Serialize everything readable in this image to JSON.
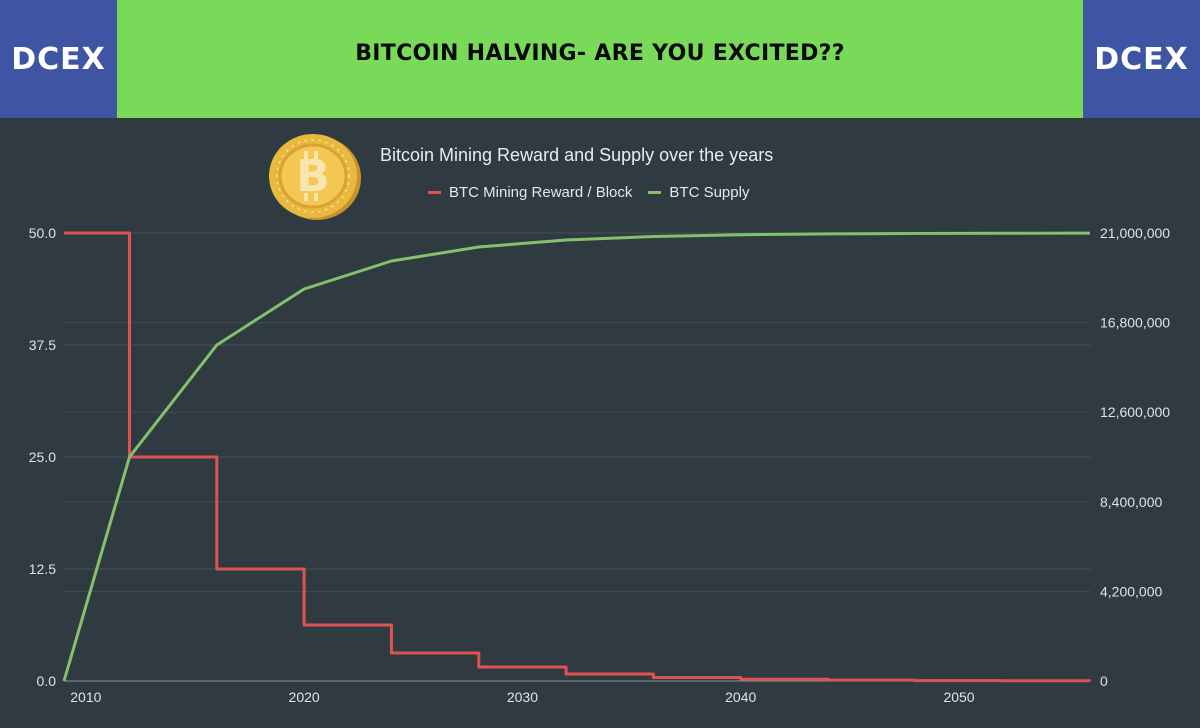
{
  "banner": {
    "logo_left": "DCEX",
    "logo_right": "DCEX",
    "title": "BITCOIN HALVING- ARE YOU EXCITED??"
  },
  "colors": {
    "logo_bg": "#3f55a3",
    "title_bg": "#79d959",
    "chart_bg": "#2f3a41",
    "reward_line": "#e05252",
    "supply_line": "#86c06c",
    "coin_gold": "#e8b93e"
  },
  "coin_icon": "bitcoin-coin-icon",
  "chart_data": {
    "type": "line",
    "title": "Bitcoin Mining Reward and Supply over the years",
    "xlim": [
      2009,
      2056
    ],
    "x_ticks": [
      "2010",
      "2020",
      "2030",
      "2040",
      "2050"
    ],
    "y_left": {
      "lim": [
        0,
        50
      ],
      "ticks": [
        "0.0",
        "12.5",
        "25.0",
        "37.5",
        "50.0"
      ]
    },
    "y_right": {
      "lim": [
        0,
        21000000
      ],
      "ticks": [
        "0",
        "4,200,000",
        "8,400,000",
        "12,600,000",
        "16,800,000",
        "21,000,000"
      ]
    },
    "grid": true,
    "legend_position": "top",
    "series": [
      {
        "name": "BTC Mining Reward / Block",
        "axis": "left",
        "step": true,
        "x": [
          2009,
          2012,
          2016,
          2020,
          2024,
          2028,
          2032,
          2036,
          2040,
          2044,
          2048,
          2052,
          2056
        ],
        "y": [
          50,
          25,
          12.5,
          6.25,
          3.125,
          1.5625,
          0.78125,
          0.390625,
          0.1953125,
          0.09765625,
          0.048828125,
          0.0244140625,
          0.0122
        ]
      },
      {
        "name": "BTC Supply",
        "axis": "right",
        "step": false,
        "x": [
          2009,
          2012,
          2016,
          2020,
          2024,
          2028,
          2032,
          2036,
          2040,
          2044,
          2048,
          2052,
          2056
        ],
        "y": [
          0,
          10500000,
          15750000,
          18375000,
          19687500,
          20343750,
          20671875,
          20835938,
          20917969,
          20958984,
          20979492,
          20989746,
          20994873
        ]
      }
    ]
  }
}
